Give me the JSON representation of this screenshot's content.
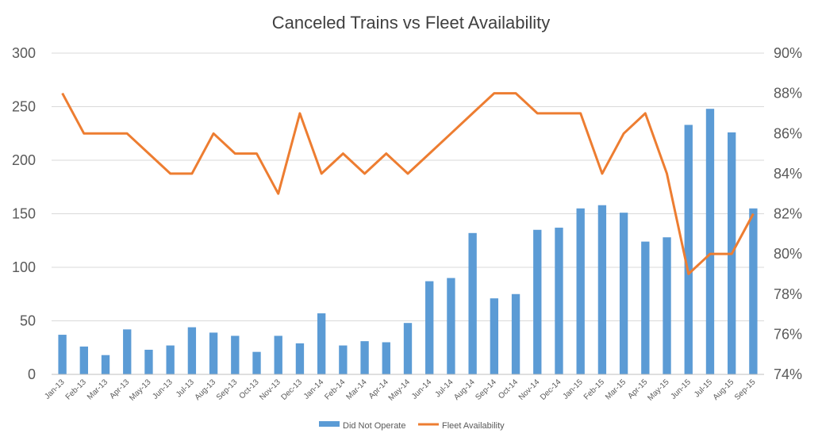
{
  "chart_data": {
    "type": "bar+line",
    "title": "Canceled Trains vs Fleet Availability",
    "categories": [
      "Jan-13",
      "Feb-13",
      "Mar-13",
      "Apr-13",
      "May-13",
      "Jun-13",
      "Jul-13",
      "Aug-13",
      "Sep-13",
      "Oct-13",
      "Nov-13",
      "Dec-13",
      "Jan-14",
      "Feb-14",
      "Mar-14",
      "Apr-14",
      "May-14",
      "Jun-14",
      "Jul-14",
      "Aug-14",
      "Sep-14",
      "Oct-14",
      "Nov-14",
      "Dec-14",
      "Jan-15",
      "Feb-15",
      "Mar-15",
      "Apr-15",
      "May-15",
      "Jun-15",
      "Jul-15",
      "Aug-15",
      "Sep-15"
    ],
    "series": [
      {
        "name": "Did Not Operate",
        "type": "bar",
        "axis": "left",
        "color": "#5b9bd5",
        "values": [
          37,
          26,
          18,
          42,
          23,
          27,
          44,
          39,
          36,
          21,
          36,
          29,
          57,
          27,
          31,
          30,
          48,
          87,
          90,
          132,
          71,
          75,
          135,
          137,
          155,
          158,
          151,
          124,
          128,
          233,
          248,
          226,
          155
        ]
      },
      {
        "name": "Fleet Availability",
        "type": "line",
        "axis": "right",
        "color": "#ed7d31",
        "values": [
          0.88,
          0.86,
          0.86,
          0.86,
          0.85,
          0.84,
          0.84,
          0.86,
          0.85,
          0.85,
          0.83,
          0.87,
          0.84,
          0.85,
          0.84,
          0.85,
          0.84,
          0.85,
          0.86,
          0.87,
          0.88,
          0.88,
          0.87,
          0.87,
          0.87,
          0.84,
          0.86,
          0.87,
          0.84,
          0.79,
          0.8,
          0.8,
          0.82
        ]
      }
    ],
    "y_left": {
      "min": 0,
      "max": 300,
      "ticks": [
        0,
        50,
        100,
        150,
        200,
        250,
        300
      ],
      "tick_labels": [
        "0",
        "50",
        "100",
        "150",
        "200",
        "250",
        "300"
      ]
    },
    "y_right": {
      "min": 0.74,
      "max": 0.9,
      "ticks": [
        0.74,
        0.76,
        0.78,
        0.8,
        0.82,
        0.84,
        0.86,
        0.88,
        0.9
      ],
      "tick_labels": [
        "74%",
        "76%",
        "78%",
        "80%",
        "82%",
        "84%",
        "86%",
        "88%",
        "90%"
      ]
    },
    "grid": true,
    "legend": {
      "position": "bottom",
      "entries": [
        "Did Not Operate",
        "Fleet Availability"
      ]
    }
  }
}
